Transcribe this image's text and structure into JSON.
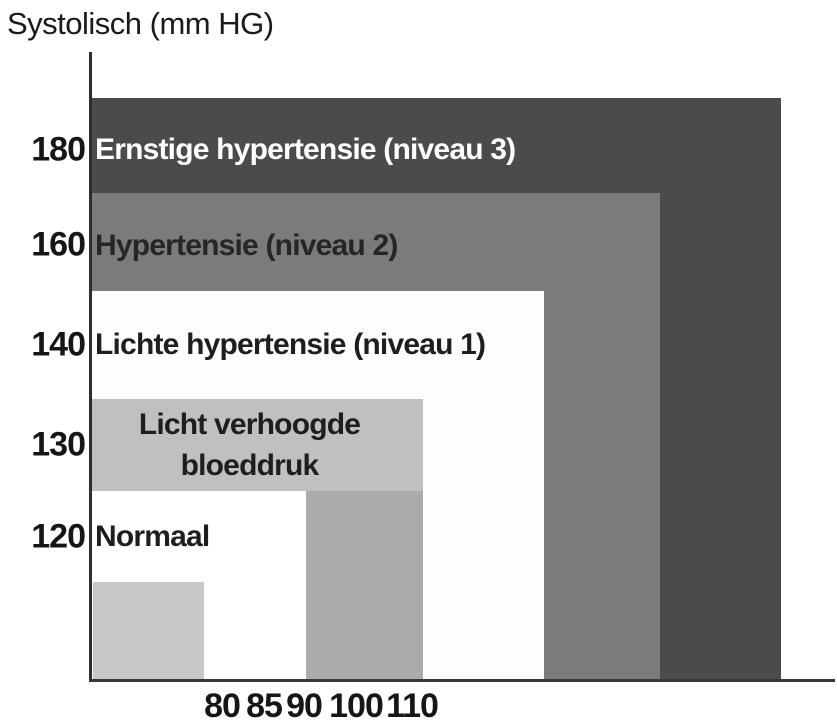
{
  "axis": {
    "y_title": "Systolisch (mm HG)",
    "y_ticks": [
      "180",
      "160",
      "140",
      "130",
      "120"
    ],
    "x_ticks": [
      "80",
      "85",
      "90",
      "100",
      "110"
    ]
  },
  "labels": {
    "severe": "Ernstige hypertensie (niveau 3)",
    "stage2": "Hypertensie (niveau 2)",
    "stage1": "Lichte hypertensie (niveau 1)",
    "elevated_line1": "Licht verhoogde",
    "elevated_line2": "bloeddruk",
    "normal": "Normaal"
  },
  "colors": {
    "severe_fill": "#4b4b4b",
    "stage2_fill": "#7b7b7b",
    "stage1_fill": "#fdfdfd",
    "elevated_fill": "#c0c0c0",
    "elevated_lower_column_fill": "#ababab",
    "normal_fill": "#ffffff",
    "unlabeled_bottom_left_fill": "#c8c8c8",
    "axis_line": "#333333",
    "text_dark": "#1a1a1a",
    "text_light": "#ffffff"
  },
  "chart_data": {
    "type": "area",
    "title": "Systolisch (mm HG)",
    "ylabel": "Systolisch (mm HG)",
    "xlabel": "",
    "y_tick_labels": [
      180,
      160,
      140,
      130,
      120
    ],
    "x_tick_labels": [
      80,
      85,
      90,
      100,
      110
    ],
    "grid": false,
    "legend": "none",
    "description": "Nested rectangles classifying blood pressure; each labeled region is associated with the systolic (y) and diastolic (x) tick values shown",
    "regions": [
      {
        "label": "Ernstige hypertensie (niveau 3)",
        "systolic": 180,
        "diastolic": 110,
        "fill": "#4b4b4b",
        "label_color": "#ffffff"
      },
      {
        "label": "Hypertensie (niveau 2)",
        "systolic": 160,
        "diastolic": 100,
        "fill": "#7b7b7b",
        "label_color": "#262626"
      },
      {
        "label": "Lichte hypertensie (niveau 1)",
        "systolic": 140,
        "diastolic": 90,
        "fill": "#fdfdfd",
        "label_color": "#1e1e1e"
      },
      {
        "label": "Licht verhoogde bloeddruk",
        "systolic": 130,
        "diastolic": 85,
        "fill": "#c0c0c0",
        "label_color": "#1e1e1e"
      },
      {
        "label": "Normaal",
        "systolic": 120,
        "diastolic": 80,
        "fill": "#ffffff",
        "label_color": "#1e1e1e"
      },
      {
        "label": "",
        "systolic": null,
        "diastolic": null,
        "fill": "#c8c8c8",
        "label_color": ""
      }
    ]
  }
}
